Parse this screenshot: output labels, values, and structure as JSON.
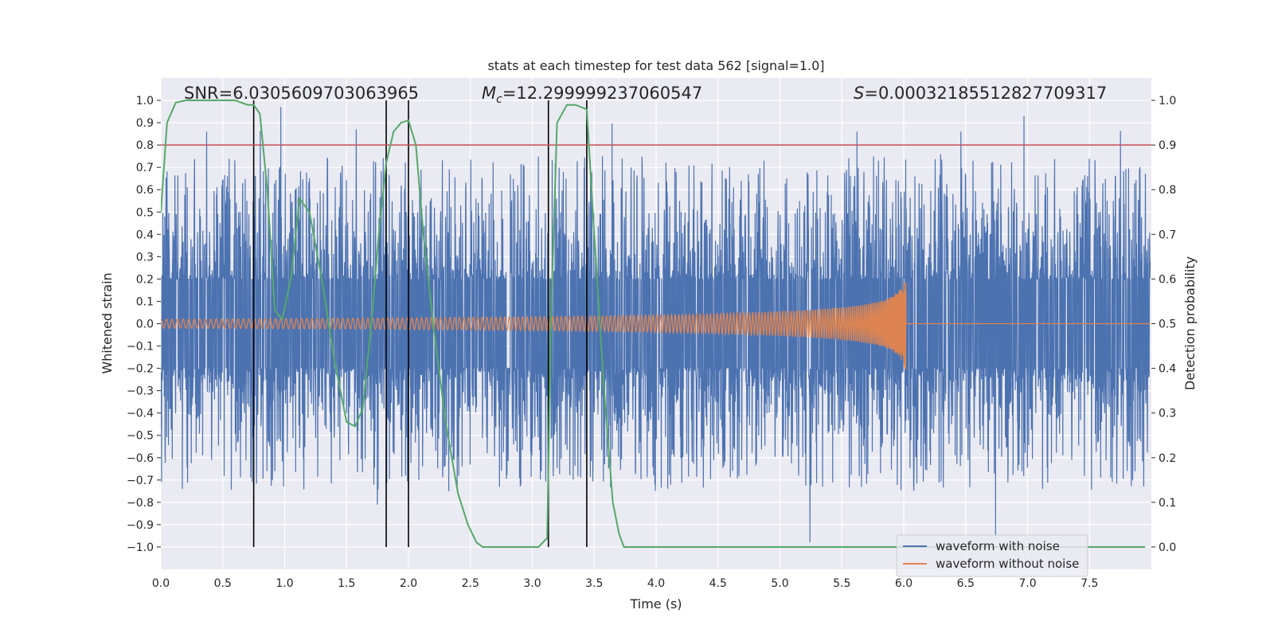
{
  "chart_data": {
    "type": "line",
    "title": "stats at each timestep for test data 562 [signal=1.0]",
    "xlabel": "Time (s)",
    "ylabel": "Whitened strain",
    "y2label": "Detection probability",
    "xlim": [
      0.0,
      8.0
    ],
    "ylim": [
      -1.1,
      1.1
    ],
    "y2lim": [
      -0.05,
      1.05
    ],
    "xticks": [
      0.0,
      0.5,
      1.0,
      1.5,
      2.0,
      2.5,
      3.0,
      3.5,
      4.0,
      4.5,
      5.0,
      5.5,
      6.0,
      6.5,
      7.0,
      7.5
    ],
    "xtick_labels": [
      "0.0",
      "0.5",
      "1.0",
      "1.5",
      "2.0",
      "2.5",
      "3.0",
      "3.5",
      "4.0",
      "4.5",
      "5.0",
      "5.5",
      "6.0",
      "6.5",
      "7.0",
      "7.5"
    ],
    "yticks": [
      1.0,
      0.9,
      0.8,
      0.7,
      0.6,
      0.5,
      0.4,
      0.3,
      0.2,
      0.1,
      0.0,
      -0.1,
      -0.2,
      -0.3,
      -0.4,
      -0.5,
      -0.6,
      -0.7,
      -0.8,
      -0.9,
      -1.0
    ],
    "ytick_labels": [
      "1.0",
      "0.9",
      "0.8",
      "0.7",
      "0.6",
      "0.5",
      "0.4",
      "0.3",
      "0.2",
      "0.1",
      "0.0",
      "−0.1",
      "−0.2",
      "−0.3",
      "−0.4",
      "−0.5",
      "−0.6",
      "−0.7",
      "−0.8",
      "−0.9",
      "−1.0"
    ],
    "y2ticks": [
      1.0,
      0.9,
      0.8,
      0.7,
      0.6,
      0.5,
      0.4,
      0.3,
      0.2,
      0.1,
      0.0
    ],
    "y2tick_labels": [
      "1.0",
      "0.9",
      "0.8",
      "0.7",
      "0.6",
      "0.5",
      "0.4",
      "0.3",
      "0.2",
      "0.1",
      "0.0"
    ],
    "annotations": {
      "snr": "SNR=6.0305609703063965",
      "mc_symbol": "M",
      "mc_sub": "c",
      "mc_value": "=12.299999237060547",
      "s_symbol": "S",
      "s_value": "=0.00032185512827709317"
    },
    "threshold_probability": 0.9,
    "vertical_markers_s": [
      0.75,
      1.82,
      2.0,
      3.13,
      3.44
    ],
    "legend": {
      "position": "lower right",
      "entries": [
        {
          "label": "waveform with noise",
          "color": "#4c72b0"
        },
        {
          "label": "waveform without noise",
          "color": "#dd8452"
        }
      ]
    },
    "series": [
      {
        "name": "waveform with noise",
        "color": "#4c72b0",
        "description": "dense noisy strain, amplitude roughly between -1.0 and 1.0",
        "peaks": [
          [
            0.37,
            0.86
          ],
          [
            0.97,
            0.97
          ],
          [
            1.58,
            0.87
          ],
          [
            5.25,
            -0.98
          ],
          [
            5.63,
            0.86
          ],
          [
            6.47,
            0.86
          ],
          [
            6.98,
            0.93
          ],
          [
            6.75,
            -0.95
          ]
        ]
      },
      {
        "name": "waveform without noise",
        "color": "#dd8452",
        "description": "chirp signal, amplitude ~0.01 growing to ~0.24 at merger near 6.02 s, then flat",
        "merger_time": 6.02,
        "peak_amplitude": 0.24
      },
      {
        "name": "detection probability",
        "color": "#55a868",
        "axis": "right",
        "x": [
          0.0,
          0.05,
          0.12,
          0.2,
          0.3,
          0.4,
          0.5,
          0.6,
          0.7,
          0.75,
          0.8,
          0.86,
          0.92,
          0.98,
          1.05,
          1.12,
          1.2,
          1.3,
          1.4,
          1.5,
          1.57,
          1.63,
          1.7,
          1.76,
          1.82,
          1.88,
          1.94,
          2.0,
          2.06,
          2.12,
          2.2,
          2.3,
          2.4,
          2.48,
          2.55,
          2.6,
          2.8,
          3.0,
          3.05,
          3.12,
          3.15,
          3.2,
          3.28,
          3.35,
          3.44,
          3.5,
          3.58,
          3.65,
          3.7,
          3.74,
          3.8,
          4.0,
          5.0,
          6.0,
          7.0,
          7.95
        ],
        "values": [
          0.75,
          0.95,
          0.995,
          1.0,
          1.0,
          1.0,
          1.0,
          1.0,
          0.99,
          0.99,
          0.97,
          0.8,
          0.53,
          0.51,
          0.6,
          0.78,
          0.75,
          0.6,
          0.42,
          0.28,
          0.27,
          0.31,
          0.5,
          0.7,
          0.86,
          0.93,
          0.95,
          0.955,
          0.9,
          0.7,
          0.5,
          0.28,
          0.12,
          0.05,
          0.01,
          0.0,
          0.0,
          0.0,
          0.0,
          0.02,
          0.5,
          0.95,
          0.99,
          0.99,
          0.98,
          0.7,
          0.35,
          0.1,
          0.03,
          0.0,
          0.0,
          0.0,
          0.0,
          0.0,
          0.0,
          0.0
        ]
      }
    ]
  }
}
